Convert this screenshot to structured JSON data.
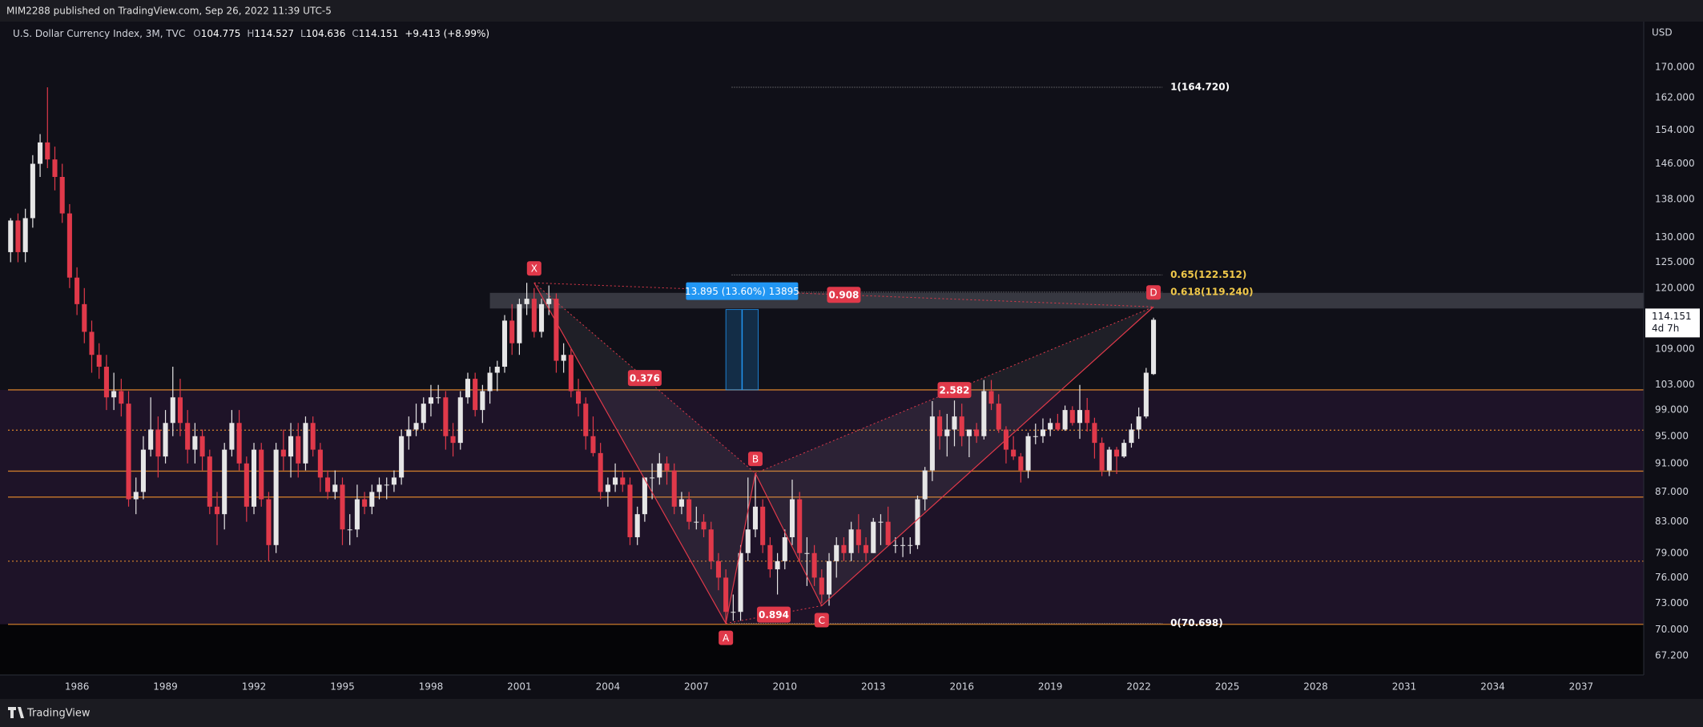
{
  "header": {
    "publisher": "MIM2288 published on TradingView.com, Sep 26, 2022 11:39 UTC-5",
    "brand": "TradingView"
  },
  "chart_data": {
    "type": "candlestick",
    "symbol": "U.S. Dollar Currency Index, 3M, TVC",
    "ohlc_labels": [
      "O",
      "H",
      "L",
      "C"
    ],
    "change": "+9.413 (+8.99%)",
    "currency": "USD",
    "countdown": "4d 7h",
    "up_color": "#e6e6e6",
    "down_color": "#e0394a",
    "log_scale": true,
    "grid": false,
    "xlim": [
      1983.39,
      2039.12
    ],
    "xticks": [
      1986,
      1989,
      1992,
      1995,
      1998,
      2001,
      2004,
      2007,
      2010,
      2013,
      2016,
      2019,
      2022,
      2025,
      2028,
      2031,
      2034,
      2037
    ],
    "ylim": [
      65.18,
      183.4
    ],
    "yticks": [
      {
        "value": 67.2,
        "label": "67.200"
      },
      {
        "value": 70,
        "label": "70.000"
      },
      {
        "value": 73,
        "label": "73.000"
      },
      {
        "value": 76,
        "label": "76.000"
      },
      {
        "value": 79,
        "label": "79.000"
      },
      {
        "value": 83,
        "label": "83.000"
      },
      {
        "value": 87,
        "label": "87.000"
      },
      {
        "value": 91,
        "label": "91.000"
      },
      {
        "value": 95,
        "label": "95.000"
      },
      {
        "value": 99,
        "label": "99.000"
      },
      {
        "value": 103,
        "label": "103.000"
      },
      {
        "value": 109,
        "label": "109.000"
      },
      {
        "value": 120,
        "label": "120.000"
      },
      {
        "value": 125,
        "label": "125.000"
      },
      {
        "value": 130,
        "label": "130.000"
      },
      {
        "value": 138,
        "label": "138.000"
      },
      {
        "value": 146,
        "label": "146.000"
      },
      {
        "value": 154,
        "label": "154.000"
      },
      {
        "value": 162,
        "label": "162.000"
      },
      {
        "value": 170,
        "label": "170.000"
      }
    ],
    "x": [
      1983.75,
      1984,
      1984.25,
      1984.5,
      1984.75,
      1985,
      1985.25,
      1985.5,
      1985.75,
      1986,
      1986.25,
      1986.5,
      1986.75,
      1987,
      1987.25,
      1987.5,
      1987.75,
      1988,
      1988.25,
      1988.5,
      1988.75,
      1989,
      1989.25,
      1989.5,
      1989.75,
      1990,
      1990.25,
      1990.5,
      1990.75,
      1991,
      1991.25,
      1991.5,
      1991.75,
      1992,
      1992.25,
      1992.5,
      1992.75,
      1993,
      1993.25,
      1993.5,
      1993.75,
      1994,
      1994.25,
      1994.5,
      1994.75,
      1995,
      1995.25,
      1995.5,
      1995.75,
      1996,
      1996.25,
      1996.5,
      1996.75,
      1997,
      1997.25,
      1997.5,
      1997.75,
      1998,
      1998.25,
      1998.5,
      1998.75,
      1999,
      1999.25,
      1999.5,
      1999.75,
      2000,
      2000.25,
      2000.5,
      2000.75,
      2001,
      2001.25,
      2001.5,
      2001.75,
      2002,
      2002.25,
      2002.5,
      2002.75,
      2003,
      2003.25,
      2003.5,
      2003.75,
      2004,
      2004.25,
      2004.5,
      2004.75,
      2005,
      2005.25,
      2005.5,
      2005.75,
      2006,
      2006.25,
      2006.5,
      2006.75,
      2007,
      2007.25,
      2007.5,
      2007.75,
      2008,
      2008.25,
      2008.5,
      2008.75,
      2009,
      2009.25,
      2009.5,
      2009.75,
      2010,
      2010.25,
      2010.5,
      2010.75,
      2011,
      2011.25,
      2011.5,
      2011.75,
      2012,
      2012.25,
      2012.5,
      2012.75,
      2013,
      2013.25,
      2013.5,
      2013.75,
      2014,
      2014.25,
      2014.5,
      2014.75,
      2015,
      2015.25,
      2015.5,
      2015.75,
      2016,
      2016.25,
      2016.5,
      2016.75,
      2017,
      2017.25,
      2017.5,
      2017.75,
      2018,
      2018.25,
      2018.5,
      2018.75,
      2019,
      2019.25,
      2019.5,
      2019.75,
      2020,
      2020.25,
      2020.5,
      2020.75,
      2021,
      2021.25,
      2021.5,
      2021.75,
      2022,
      2022.25,
      2022.5
    ],
    "ohlc": [
      [
        127,
        134,
        125,
        133.5
      ],
      [
        133.5,
        135,
        125,
        127
      ],
      [
        127,
        136,
        125,
        134
      ],
      [
        134,
        148,
        132,
        146
      ],
      [
        146,
        153,
        143,
        151
      ],
      [
        151,
        164.72,
        145,
        147
      ],
      [
        147,
        150,
        140,
        143
      ],
      [
        143,
        146,
        133,
        135
      ],
      [
        135,
        137,
        120,
        122
      ],
      [
        122,
        124,
        115,
        117
      ],
      [
        117,
        120,
        110,
        112
      ],
      [
        112,
        114,
        105,
        108
      ],
      [
        108,
        110,
        104,
        106
      ],
      [
        106,
        108,
        99,
        101
      ],
      [
        101,
        105,
        99,
        102
      ],
      [
        102,
        104,
        98,
        100
      ],
      [
        100,
        102,
        85,
        86
      ],
      [
        86,
        89,
        84,
        87
      ],
      [
        87,
        95,
        86,
        93
      ],
      [
        93,
        101,
        92,
        96
      ],
      [
        96,
        98,
        89,
        92
      ],
      [
        92,
        99,
        91,
        97
      ],
      [
        97,
        106,
        95,
        101
      ],
      [
        101,
        104,
        95,
        97
      ],
      [
        97,
        99,
        91,
        93
      ],
      [
        93,
        97,
        91,
        95
      ],
      [
        95,
        96,
        90,
        92
      ],
      [
        92,
        93,
        84,
        85
      ],
      [
        85,
        87,
        80,
        84
      ],
      [
        84,
        94,
        82,
        93
      ],
      [
        93,
        99,
        92,
        97
      ],
      [
        97,
        99,
        90,
        91
      ],
      [
        91,
        92,
        83,
        85
      ],
      [
        85,
        94,
        84,
        93
      ],
      [
        93,
        94,
        85,
        86
      ],
      [
        86,
        87,
        78,
        80
      ],
      [
        80,
        94,
        79,
        93
      ],
      [
        93,
        96,
        90,
        92
      ],
      [
        92,
        97,
        89,
        95
      ],
      [
        95,
        97,
        89,
        91
      ],
      [
        91,
        98,
        90,
        97
      ],
      [
        97,
        98,
        92,
        93
      ],
      [
        93,
        94,
        87,
        89
      ],
      [
        89,
        90,
        86,
        87
      ],
      [
        87,
        90,
        86,
        88
      ],
      [
        88,
        89,
        80,
        82
      ],
      [
        82,
        84,
        80,
        82
      ],
      [
        82,
        88,
        81,
        86
      ],
      [
        86,
        87,
        84,
        85
      ],
      [
        85,
        88,
        84,
        87
      ],
      [
        87,
        89,
        86,
        88
      ],
      [
        88,
        89,
        86,
        88
      ],
      [
        88,
        90,
        87,
        89
      ],
      [
        89,
        96,
        88,
        95
      ],
      [
        95,
        98,
        93,
        96
      ],
      [
        96,
        100,
        95,
        97
      ],
      [
        97,
        101,
        96,
        100
      ],
      [
        100,
        103,
        98,
        101
      ],
      [
        101,
        103,
        100,
        101
      ],
      [
        101,
        102,
        93,
        95
      ],
      [
        95,
        97,
        92,
        94
      ],
      [
        94,
        102,
        93,
        101
      ],
      [
        101,
        105,
        100,
        104
      ],
      [
        104,
        105,
        98,
        99
      ],
      [
        99,
        103,
        97,
        102
      ],
      [
        102,
        106,
        100,
        105
      ],
      [
        105,
        107,
        102,
        106
      ],
      [
        106,
        115,
        105,
        114
      ],
      [
        114,
        117,
        108,
        110
      ],
      [
        110,
        118,
        108,
        117
      ],
      [
        117,
        121,
        115,
        118
      ],
      [
        118,
        120,
        111,
        112
      ],
      [
        112,
        118,
        111,
        117
      ],
      [
        117,
        120.5,
        115,
        118
      ],
      [
        118,
        119,
        105,
        107
      ],
      [
        107,
        110,
        105,
        108
      ],
      [
        108,
        109,
        101,
        102
      ],
      [
        102,
        104,
        98,
        100
      ],
      [
        100,
        101,
        93,
        95
      ],
      [
        95,
        98,
        92,
        92.5
      ],
      [
        92.5,
        94,
        86,
        87
      ],
      [
        87,
        89,
        85,
        88
      ],
      [
        88,
        91,
        87,
        89
      ],
      [
        89,
        90,
        87,
        88
      ],
      [
        88,
        89,
        80,
        81
      ],
      [
        81,
        85,
        80,
        84
      ],
      [
        84,
        89,
        83,
        89
      ],
      [
        89,
        91,
        86,
        89
      ],
      [
        89,
        92.5,
        88,
        91
      ],
      [
        91,
        92,
        88,
        90
      ],
      [
        90,
        91,
        84,
        85
      ],
      [
        85,
        87,
        84,
        86
      ],
      [
        86,
        87,
        82,
        83
      ],
      [
        83,
        85,
        82,
        83
      ],
      [
        83,
        84,
        81,
        82
      ],
      [
        82,
        83,
        77,
        78
      ],
      [
        78,
        79,
        74.5,
        76
      ],
      [
        76,
        77,
        70.698,
        72
      ],
      [
        72,
        74,
        71,
        72
      ],
      [
        72,
        80,
        71,
        79
      ],
      [
        79,
        89,
        78,
        82
      ],
      [
        82,
        89.5,
        81,
        85
      ],
      [
        85,
        86,
        79,
        80
      ],
      [
        80,
        81,
        76,
        77
      ],
      [
        77,
        79,
        74,
        78
      ],
      [
        78,
        82,
        77,
        81
      ],
      [
        81,
        88.7,
        80,
        86
      ],
      [
        86,
        87,
        78,
        79
      ],
      [
        79,
        81,
        75,
        79
      ],
      [
        79,
        80,
        75,
        76
      ],
      [
        76,
        77,
        73,
        74
      ],
      [
        74,
        79,
        72.7,
        78
      ],
      [
        78,
        81,
        76,
        80
      ],
      [
        80,
        81,
        78,
        79
      ],
      [
        79,
        83,
        78,
        82
      ],
      [
        82,
        84,
        79,
        80
      ],
      [
        80,
        81,
        78,
        79
      ],
      [
        79,
        83.5,
        79,
        83
      ],
      [
        83,
        84,
        80,
        83
      ],
      [
        83,
        85,
        80,
        80
      ],
      [
        80,
        81,
        79,
        80
      ],
      [
        80,
        81,
        78.5,
        80
      ],
      [
        80,
        81,
        78.9,
        80
      ],
      [
        80,
        86.5,
        79.5,
        86
      ],
      [
        86,
        90.5,
        84.5,
        90
      ],
      [
        90,
        100.4,
        88.5,
        98
      ],
      [
        98,
        99,
        93,
        95
      ],
      [
        95,
        98.4,
        92,
        96
      ],
      [
        96,
        100.5,
        93.5,
        98
      ],
      [
        98,
        100,
        93.5,
        95
      ],
      [
        95,
        96,
        91.9,
        96
      ],
      [
        96,
        97,
        94,
        95
      ],
      [
        95,
        103.8,
        94.5,
        102
      ],
      [
        102,
        103.8,
        99,
        100
      ],
      [
        100,
        101.5,
        95.5,
        96
      ],
      [
        96,
        96.5,
        91,
        93
      ],
      [
        93,
        95,
        91.5,
        92
      ],
      [
        92,
        92.5,
        88.3,
        90
      ],
      [
        90,
        95.5,
        88.9,
        95
      ],
      [
        95,
        96.9,
        93.8,
        95
      ],
      [
        95,
        97.7,
        94,
        96
      ],
      [
        96,
        97.7,
        95,
        97
      ],
      [
        97,
        98.4,
        95.8,
        96
      ],
      [
        96,
        99.7,
        95.8,
        99
      ],
      [
        99,
        99.6,
        96.6,
        97
      ],
      [
        97,
        103,
        94.6,
        99
      ],
      [
        99,
        100.9,
        95.7,
        97
      ],
      [
        97,
        97.8,
        91.7,
        94
      ],
      [
        94,
        94.8,
        89.2,
        90
      ],
      [
        90,
        93.4,
        89.2,
        93
      ],
      [
        93,
        93.4,
        89.5,
        92
      ],
      [
        92,
        94.5,
        91.8,
        94
      ],
      [
        94,
        96.9,
        93.3,
        96
      ],
      [
        96,
        99.4,
        94.6,
        98
      ],
      [
        98,
        105.8,
        97.7,
        105
      ],
      [
        104.775,
        114.527,
        104.636,
        114.151
      ]
    ],
    "levels": [
      {
        "value": 102.2,
        "dash": false
      },
      {
        "value": 95.9,
        "dash": true
      },
      {
        "value": 89.9,
        "dash": false
      },
      {
        "value": 86.3,
        "dash": false
      },
      {
        "value": 78.0,
        "dash": true
      },
      {
        "value": 70.6,
        "dash": false
      }
    ],
    "level_color": "#c97a2b",
    "zone": {
      "x_start": 2000.0,
      "y": [
        116.2,
        119.1
      ]
    },
    "fib_x": [
      2008.2,
      2022.8
    ],
    "fib": [
      {
        "label": "1(164.720)",
        "value": 164.72,
        "color": "#ffffff"
      },
      {
        "label": "0.65(122.512)",
        "value": 122.512,
        "color": "#f0c84a"
      },
      {
        "label": "0.618(119.240)",
        "value": 119.24,
        "color": "#f0c84a"
      },
      {
        "label": "0(70.698)",
        "value": 70.698,
        "color": "#ffffff"
      }
    ],
    "pattern": {
      "color": "#e0394a",
      "points": [
        {
          "label": "X",
          "x": 2001.5,
          "y": 121
        },
        {
          "label": "A",
          "x": 2008.0,
          "y": 70.7
        },
        {
          "label": "B",
          "x": 2009.0,
          "y": 89.6
        },
        {
          "label": "C",
          "x": 2011.25,
          "y": 72.7
        },
        {
          "label": "D",
          "x": 2022.5,
          "y": 116.5
        }
      ],
      "ratios": [
        0.376,
        0.894,
        2.582,
        0.908
      ]
    },
    "measure": {
      "label": "13.895 (13.60%) 13895",
      "x": [
        2008.0,
        2009.1
      ],
      "y": [
        102.2,
        116.0
      ],
      "color": "#2196f3"
    }
  }
}
